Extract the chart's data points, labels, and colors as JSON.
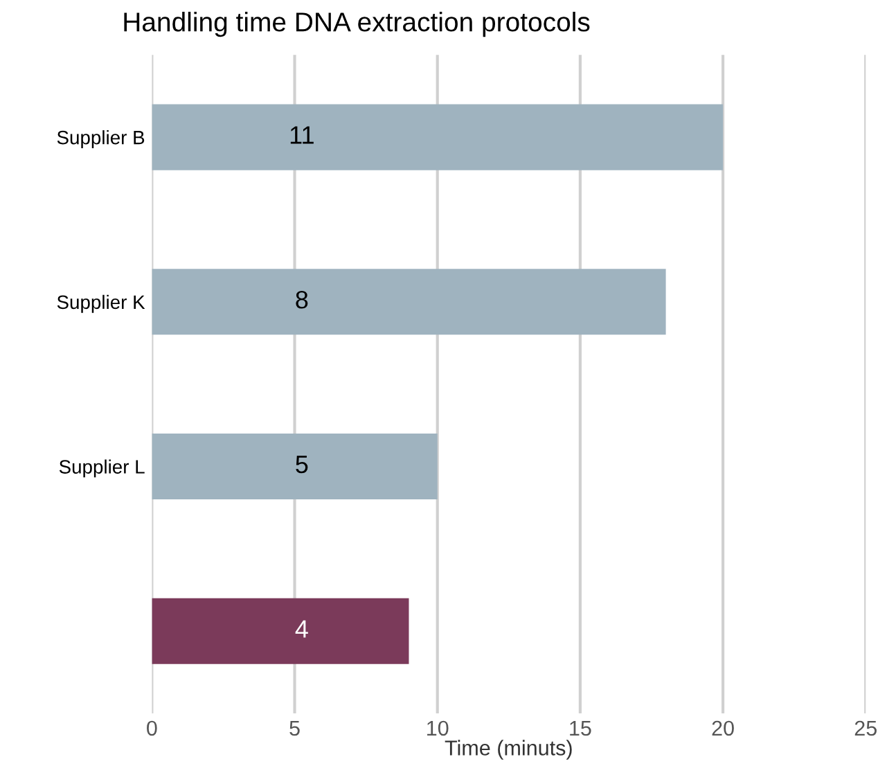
{
  "chart_data": {
    "type": "bar",
    "orientation": "horizontal",
    "title": "Handling time DNA extraction protocols",
    "xlabel": "Time (minuts)",
    "categories": [
      "Supplier B",
      "Supplier K",
      "Supplier L",
      null
    ],
    "values": [
      20,
      18,
      10,
      9
    ],
    "colors": [
      "#9fb3bf",
      "#9fb3bf",
      "#9fb3bf",
      "#7b3a5a"
    ],
    "annotations": [
      "11",
      "8",
      "5",
      "4"
    ],
    "xlim": [
      0,
      25
    ],
    "xticks": [
      0,
      5,
      10,
      15,
      20,
      25
    ],
    "grid": "x"
  }
}
